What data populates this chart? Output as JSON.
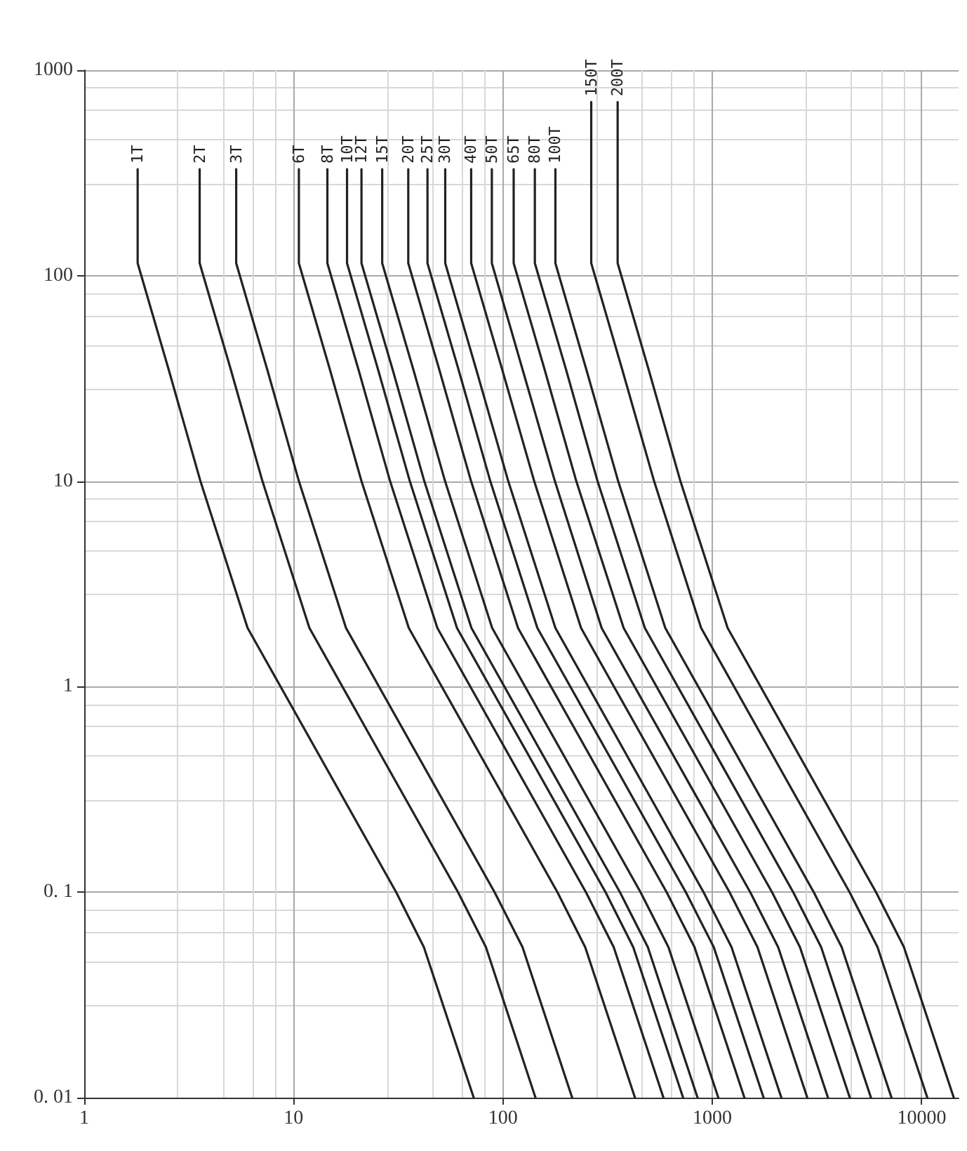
{
  "chart_data": {
    "type": "line",
    "log": "xy",
    "grid": true,
    "legend": false,
    "marker": "none",
    "line_style": "solid",
    "xlim": [
      1,
      15000
    ],
    "xticks": [
      1,
      10,
      100,
      1000,
      10000
    ],
    "ylim": [
      0.01,
      1000
    ],
    "yticks": [
      {
        "value": 0.01,
        "label": "0. 01"
      },
      {
        "value": 0.1,
        "label": "0. 1"
      },
      1,
      10,
      100,
      1000
    ],
    "series": [
      {
        "name": "1T",
        "color": "#222222",
        "x": [
          1.8,
          1.8,
          2.53,
          3.59,
          6.03,
          30.9,
          41.9,
          72.5
        ],
        "values": [
          330,
          115,
          35,
          10,
          1.93,
          0.1,
          0.054,
          0.01
        ]
      },
      {
        "name": "2T",
        "color": "#222222",
        "x": [
          3.56,
          3.56,
          5.01,
          7.1,
          11.9,
          61,
          82.9,
          143
        ],
        "values": [
          330,
          115,
          35,
          10,
          1.93,
          0.1,
          0.054,
          0.01
        ]
      },
      {
        "name": "3T",
        "color": "#222222",
        "x": [
          5.32,
          5.32,
          7.48,
          10.6,
          17.8,
          91.2,
          124,
          214
        ],
        "values": [
          330,
          115,
          35,
          10,
          1.93,
          0.1,
          0.054,
          0.01
        ]
      },
      {
        "name": "6T",
        "color": "#222222",
        "x": [
          10.6,
          10.6,
          14.9,
          21.1,
          35.5,
          182,
          247,
          427
        ],
        "values": [
          330,
          115,
          35,
          10,
          1.93,
          0.1,
          0.054,
          0.01
        ]
      },
      {
        "name": "8T",
        "color": "#222222",
        "x": [
          14.5,
          14.5,
          20.4,
          28.9,
          48.6,
          249,
          338,
          584
        ],
        "values": [
          330,
          115,
          35,
          10,
          1.93,
          0.1,
          0.054,
          0.01
        ]
      },
      {
        "name": "10T",
        "color": "#222222",
        "x": [
          18,
          18,
          25.3,
          35.9,
          60.3,
          309,
          419,
          725
        ],
        "values": [
          330,
          115,
          35,
          10,
          1.93,
          0.1,
          0.054,
          0.01
        ]
      },
      {
        "name": "12T",
        "color": "#222222",
        "x": [
          21.1,
          21.1,
          29.7,
          42.1,
          70.7,
          362,
          492,
          850
        ],
        "values": [
          330,
          115,
          35,
          10,
          1.93,
          0.1,
          0.054,
          0.01
        ]
      },
      {
        "name": "15T",
        "color": "#222222",
        "x": [
          26.5,
          26.5,
          37.3,
          52.9,
          88.8,
          454,
          617,
          1068
        ],
        "values": [
          330,
          115,
          35,
          10,
          1.93,
          0.1,
          0.054,
          0.01
        ]
      },
      {
        "name": "20T",
        "color": "#222222",
        "x": [
          35.3,
          35.3,
          49.6,
          70.4,
          118,
          605,
          822,
          1423
        ],
        "values": [
          330,
          115,
          35,
          10,
          1.93,
          0.1,
          0.054,
          0.01
        ]
      },
      {
        "name": "25T",
        "color": "#222222",
        "x": [
          43.6,
          43.6,
          61.3,
          87,
          146,
          747,
          1016,
          1757
        ],
        "values": [
          330,
          115,
          35,
          10,
          1.93,
          0.1,
          0.054,
          0.01
        ]
      },
      {
        "name": "30T",
        "color": "#222222",
        "x": [
          53,
          53,
          74.5,
          106,
          178,
          908,
          1235,
          2136
        ],
        "values": [
          330,
          115,
          35,
          10,
          1.93,
          0.1,
          0.054,
          0.01
        ]
      },
      {
        "name": "40T",
        "color": "#222222",
        "x": [
          70.5,
          70.5,
          99.1,
          141,
          236,
          1208,
          1643,
          2841
        ],
        "values": [
          330,
          115,
          35,
          10,
          1.93,
          0.1,
          0.054,
          0.01
        ]
      },
      {
        "name": "50T",
        "color": "#222222",
        "x": [
          88.5,
          88.5,
          124,
          177,
          296,
          1517,
          2062,
          3567
        ],
        "values": [
          330,
          115,
          35,
          10,
          1.93,
          0.1,
          0.054,
          0.01
        ]
      },
      {
        "name": "65T",
        "color": "#222222",
        "x": [
          112.5,
          112.5,
          158,
          224,
          377,
          1928,
          2621,
          4534
        ],
        "values": [
          330,
          115,
          35,
          10,
          1.93,
          0.1,
          0.054,
          0.01
        ]
      },
      {
        "name": "80T",
        "color": "#222222",
        "x": [
          142,
          142,
          200,
          283,
          476,
          2434,
          3309,
          5723
        ],
        "values": [
          330,
          115,
          35,
          10,
          1.93,
          0.1,
          0.054,
          0.01
        ]
      },
      {
        "name": "100T",
        "color": "#222222",
        "x": [
          178,
          178,
          250,
          355,
          596,
          3051,
          4147,
          7173
        ],
        "values": [
          330,
          115,
          35,
          10,
          1.93,
          0.1,
          0.054,
          0.01
        ]
      },
      {
        "name": "150T",
        "color": "#222222",
        "x": [
          264,
          264,
          371,
          527,
          884,
          4525,
          6151,
          10639
        ],
        "values": [
          700,
          115,
          35,
          10,
          1.93,
          0.1,
          0.054,
          0.01
        ]
      },
      {
        "name": "200T",
        "color": "#222222",
        "x": [
          353,
          353,
          496,
          704,
          1183,
          6050,
          8225,
          14226
        ],
        "values": [
          700,
          115,
          35,
          10,
          1.93,
          0.1,
          0.054,
          0.01
        ]
      }
    ]
  }
}
